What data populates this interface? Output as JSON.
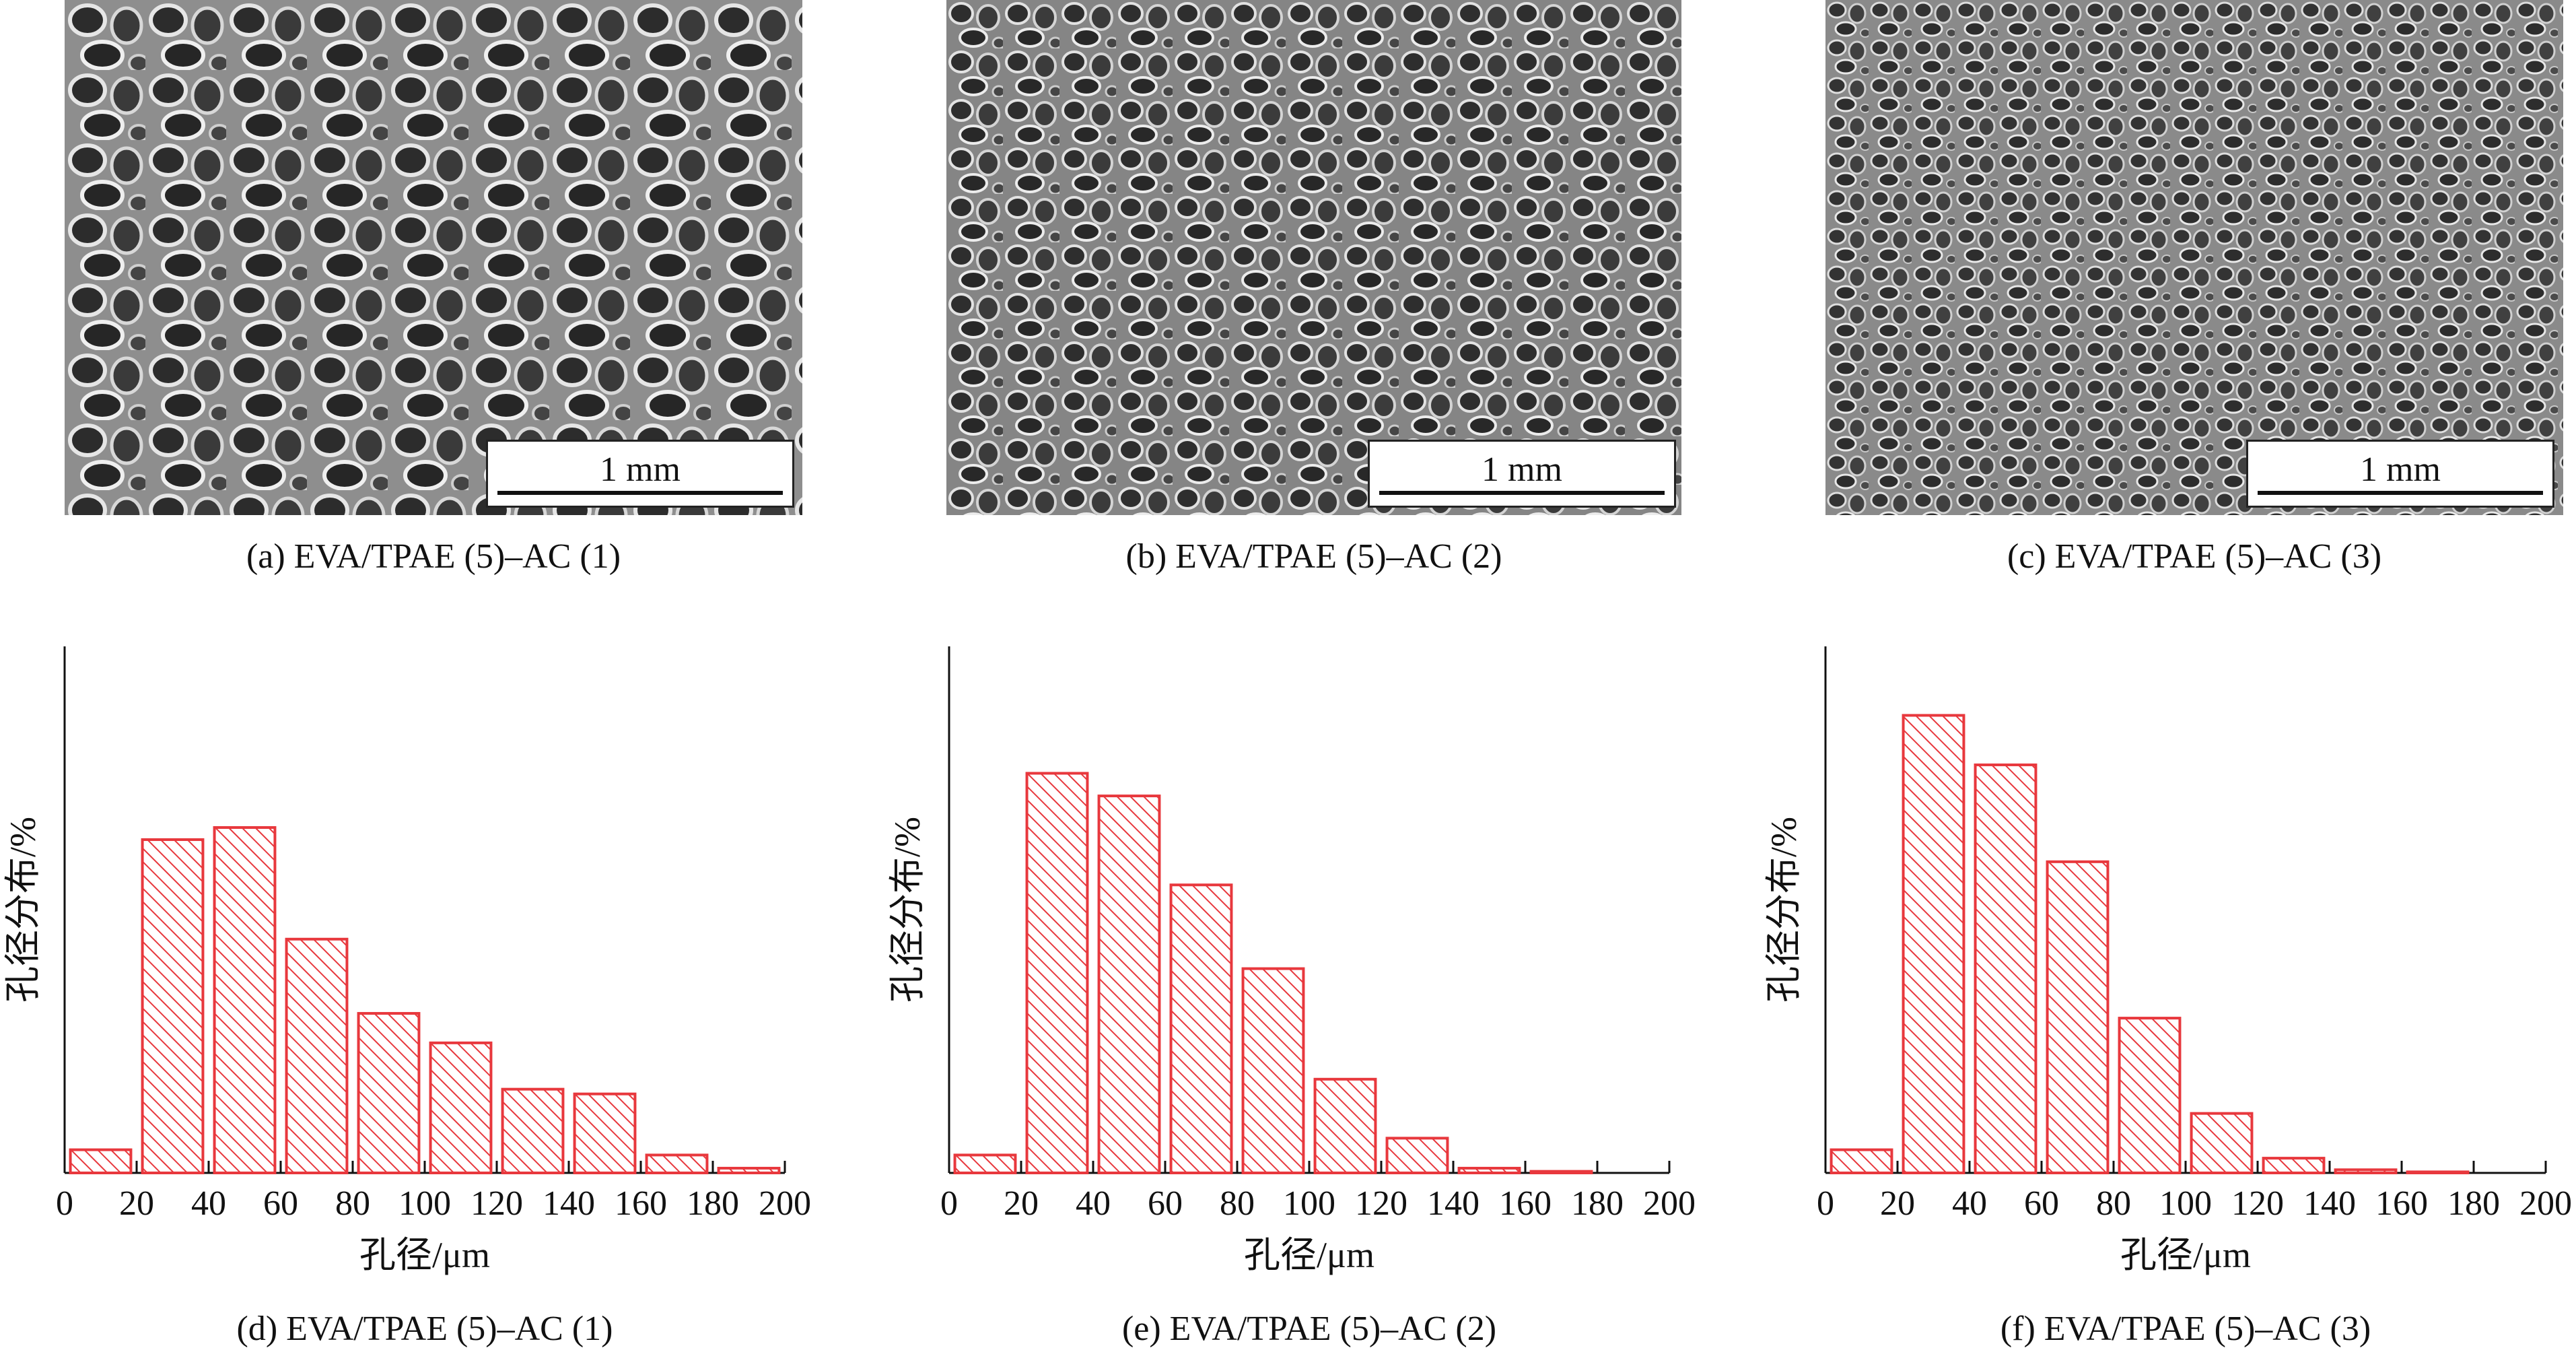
{
  "panels": [
    {
      "caption": "(a) EVA/TPAE (5)–AC (1)",
      "scale_label": "1 mm"
    },
    {
      "caption": "(b) EVA/TPAE (5)–AC (2)",
      "scale_label": "1 mm"
    },
    {
      "caption": "(c) EVA/TPAE (5)–AC (3)",
      "scale_label": "1 mm"
    }
  ],
  "chart_data": [
    {
      "type": "bar",
      "caption": "(d) EVA/TPAE (5)–AC (1)",
      "xlabel": "孔径/μm",
      "ylabel": "孔径分布/%",
      "x_ticks": [
        0,
        20,
        40,
        60,
        80,
        100,
        120,
        140,
        160,
        180,
        200
      ],
      "xlim": [
        0,
        200
      ],
      "ylim": [
        0,
        100
      ],
      "bin_width": 20,
      "bar_centers": [
        10,
        30,
        50,
        70,
        90,
        110,
        130,
        150,
        170,
        190
      ],
      "values": [
        4.4,
        63.3,
        65.6,
        44.4,
        30.3,
        24.7,
        15.9,
        15.0,
        3.4,
        0.9
      ],
      "bar_color": "#e8383d"
    },
    {
      "type": "bar",
      "caption": "(e) EVA/TPAE (5)–AC (2)",
      "xlabel": "孔径/μm",
      "ylabel": "孔径分布/%",
      "x_ticks": [
        0,
        20,
        40,
        60,
        80,
        100,
        120,
        140,
        160,
        180,
        200
      ],
      "xlim": [
        0,
        200
      ],
      "ylim": [
        0,
        100
      ],
      "bin_width": 20,
      "bar_centers": [
        10,
        30,
        50,
        70,
        90,
        110,
        130,
        150,
        170
      ],
      "values": [
        3.4,
        75.9,
        71.6,
        54.7,
        38.8,
        17.8,
        6.6,
        0.9,
        0.3
      ],
      "bar_color": "#e8383d"
    },
    {
      "type": "bar",
      "caption": "(f) EVA/TPAE (5)–AC (3)",
      "xlabel": "孔径/μm",
      "ylabel": "孔径分布/%",
      "x_ticks": [
        0,
        20,
        40,
        60,
        80,
        100,
        120,
        140,
        160,
        180,
        200
      ],
      "xlim": [
        0,
        200
      ],
      "ylim": [
        0,
        100
      ],
      "bin_width": 20,
      "bar_centers": [
        10,
        30,
        50,
        70,
        90,
        110,
        130,
        150,
        170
      ],
      "values": [
        4.4,
        86.9,
        77.5,
        59.1,
        29.4,
        11.3,
        2.8,
        0.6,
        0.2
      ],
      "bar_color": "#e8383d"
    }
  ]
}
